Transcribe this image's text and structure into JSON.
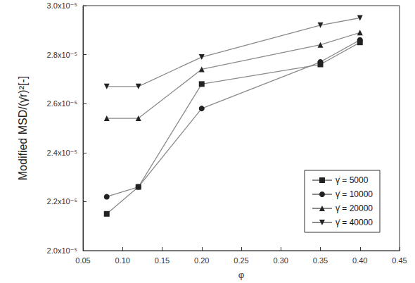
{
  "chart_data": {
    "type": "line",
    "x_label": "φ",
    "y_label": "Modified MSD/(γ̇r)²[-]",
    "x": [
      0.08,
      0.12,
      0.2,
      0.35,
      0.4
    ],
    "series": [
      {
        "name": "γ̇ = 5000",
        "color": "#222222",
        "marker": "square",
        "values": [
          2.15e-05,
          2.26e-05,
          2.68e-05,
          2.76e-05,
          2.85e-05
        ]
      },
      {
        "name": "γ̇ = 10000",
        "color": "#222222",
        "marker": "circle",
        "values": [
          2.22e-05,
          2.26e-05,
          2.58e-05,
          2.77e-05,
          2.86e-05
        ]
      },
      {
        "name": "γ̇ = 20000",
        "color": "#222222",
        "marker": "triangle",
        "values": [
          2.54e-05,
          2.54e-05,
          2.74e-05,
          2.84e-05,
          2.89e-05
        ]
      },
      {
        "name": "γ̇ = 40000",
        "color": "#222222",
        "marker": "inverted triangle",
        "values": [
          2.67e-05,
          2.67e-05,
          2.79e-05,
          2.92e-05,
          2.95e-05
        ]
      }
    ],
    "xlim": [
      0.05,
      0.45
    ],
    "xticks": [
      0.05,
      {
        "value": 0.1,
        "label": "0.10"
      },
      0.15,
      {
        "value": 0.2,
        "label": "0.20"
      },
      0.25,
      {
        "value": 0.3,
        "label": "0.30"
      },
      0.35,
      {
        "value": 0.4,
        "label": "0.40"
      },
      0.45
    ],
    "ylim": [
      2e-05,
      3e-05
    ],
    "yticks": [
      {
        "value": 2e-05,
        "label": "2.0x10⁻⁵"
      },
      {
        "value": 2.2e-05,
        "label": "2.2x10⁻⁵"
      },
      {
        "value": 2.4e-05,
        "label": "2.4x10⁻⁵"
      },
      {
        "value": 2.6e-05,
        "label": "2.6x10⁻⁵"
      },
      {
        "value": 2.8e-05,
        "label": "2.8x10⁻⁵"
      },
      {
        "value": 3e-05,
        "label": "3.0x10⁻⁵"
      }
    ],
    "grid": false,
    "legend": "lower right"
  }
}
